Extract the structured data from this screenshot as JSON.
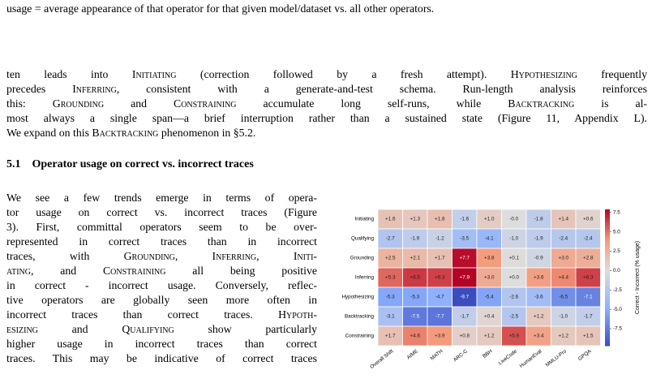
{
  "caption_tail": "usage = average appearance of that operator for that given model/dataset vs. all other operators.",
  "paragraph_1": [
    [
      "ten leads into ",
      {
        "sc": "Initiating"
      },
      " (correction followed by a fresh attempt). ",
      {
        "sc": "Hypothesizing"
      },
      " frequently"
    ],
    [
      "precedes ",
      {
        "sc": "Inferring"
      },
      ", consistent with a generate-and-test schema. Run-length analysis reinforces"
    ],
    [
      "this: ",
      {
        "sc": "Grounding"
      },
      " and ",
      {
        "sc": "Constraining"
      },
      " accumulate long self-runs, while ",
      {
        "sc": "Backtracking"
      },
      " is al-"
    ],
    [
      "most always a single span—a brief interruption rather than a sustained state (Figure 11, Appendix L)."
    ],
    [
      "We expand on this ",
      {
        "sc": "Backtracking"
      },
      " phenomenon in §5.2."
    ]
  ],
  "section": {
    "number": "5.1",
    "title": "Operator usage on correct vs. incorrect traces"
  },
  "paragraph_2": [
    [
      "We see a few trends emerge in terms of opera-"
    ],
    [
      "tor usage on correct vs. incorrect traces (Figure"
    ],
    [
      "3). First, committal operators seem to be over-"
    ],
    [
      "represented in correct traces than in incorrect"
    ],
    [
      "traces, with ",
      {
        "sc": "Grounding"
      },
      ", ",
      {
        "sc": "Inferring"
      },
      ", ",
      {
        "sc": "Initi-"
      }
    ],
    [
      {
        "sc": "ating"
      },
      ", and ",
      {
        "sc": "Constraining"
      },
      " all being positive"
    ],
    [
      "in correct - incorrect usage. Conversely, reflec-"
    ],
    [
      "tive operators are globally seen more often in"
    ],
    [
      "incorrect traces than correct traces. ",
      {
        "sc": "Hypoth-"
      }
    ],
    [
      {
        "sc": "esizing"
      },
      " and ",
      {
        "sc": "Qualifying"
      },
      " show particularly"
    ],
    [
      "higher usage in incorrect traces than correct"
    ],
    [
      "traces. This may be indicative of correct traces"
    ]
  ],
  "chart_data": {
    "type": "heatmap",
    "colormap": "coolwarm",
    "categories": [
      "Overall Shift",
      "AIME",
      "MATH",
      "ARC-C",
      "BBH",
      "LiveCode",
      "HumanEval",
      "MMLU-Pro",
      "GPQA"
    ],
    "series": [
      {
        "name": "Initiating",
        "values": [
          1.6,
          1.3,
          1.8,
          -1.6,
          1.0,
          0.0,
          -1.8,
          1.4,
          0.6
        ],
        "value_labels": [
          "+1.6",
          "+1.3",
          "+1.8",
          "-1.6",
          "+1.0",
          "-0.0",
          "-1.8",
          "+1.4",
          "+0.6"
        ]
      },
      {
        "name": "Qualifying",
        "values": [
          -2.7,
          -1.9,
          -1.2,
          -3.5,
          -4.1,
          -1.0,
          -1.9,
          -2.4,
          -2.4
        ],
        "value_labels": [
          "-2.7",
          "-1.9",
          "-1.2",
          "-3.5",
          "-4.1",
          "-1.0",
          "-1.9",
          "-2.4",
          "-2.4"
        ]
      },
      {
        "name": "Grounding",
        "values": [
          2.5,
          2.1,
          1.7,
          7.7,
          3.8,
          0.1,
          -0.9,
          3.0,
          2.8
        ],
        "value_labels": [
          "+2.5",
          "+2.1",
          "+1.7",
          "+7.7",
          "+3.8",
          "+0.1",
          "-0.9",
          "+3.0",
          "+2.8"
        ]
      },
      {
        "name": "Inferring",
        "values": [
          5.3,
          6.5,
          6.3,
          7.9,
          3.0,
          0.0,
          3.6,
          4.4,
          6.3
        ],
        "value_labels": [
          "+5.3",
          "+6.5",
          "+6.3",
          "+7.9",
          "+3.0",
          "+0.0",
          "+3.6",
          "+4.4",
          "+6.3"
        ]
      },
      {
        "name": "Hypothesizing",
        "values": [
          -5.3,
          -5.3,
          -4.7,
          -9.7,
          -5.4,
          -2.6,
          -3.6,
          -6.5,
          -7.1
        ],
        "value_labels": [
          "-5.3",
          "-5.3",
          "-4.7",
          "-9.7",
          "-5.4",
          "-2.6",
          "-3.6",
          "-6.5",
          "-7.1"
        ]
      },
      {
        "name": "Backtracking",
        "values": [
          -3.1,
          -7.5,
          -7.7,
          -1.7,
          0.4,
          -2.5,
          1.2,
          -1.0,
          -1.7
        ],
        "value_labels": [
          "-3.1",
          "-7.5",
          "-7.7",
          "-1.7",
          "+0.4",
          "-2.5",
          "+1.2",
          "-1.0",
          "-1.7"
        ]
      },
      {
        "name": "Constraining",
        "values": [
          1.7,
          4.6,
          3.9,
          0.8,
          1.2,
          5.9,
          3.4,
          1.2,
          1.5
        ],
        "value_labels": [
          "+1.7",
          "+4.6",
          "+3.9",
          "+0.8",
          "+1.2",
          "+5.9",
          "+3.4",
          "+1.2",
          "+1.5"
        ]
      }
    ],
    "clim": [
      -9.7,
      7.9
    ],
    "cticks": [
      7.5,
      {
        "value": 5,
        "label": "5.0"
      },
      2.5,
      {
        "value": 0,
        "label": "0.0"
      },
      -2.5,
      {
        "value": -5,
        "label": "-5.0"
      },
      -7.5
    ],
    "colorbar_label": "Correct - Incorrect (% usage)"
  }
}
